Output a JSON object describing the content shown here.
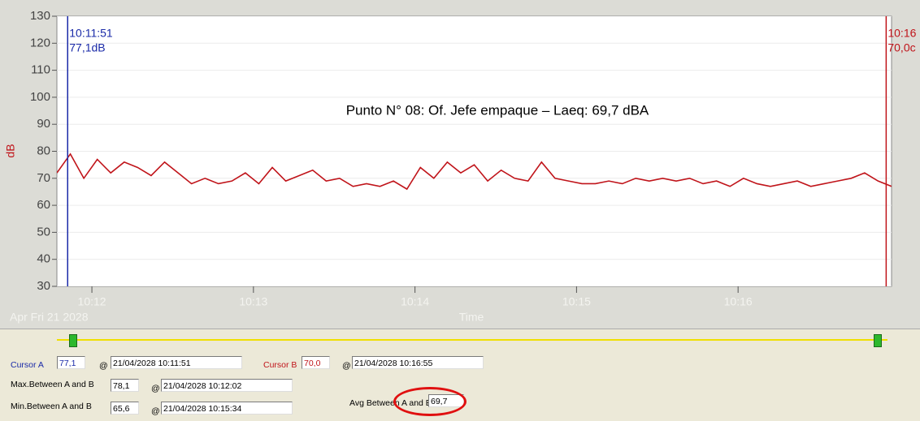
{
  "chart_data": {
    "type": "line",
    "annotation": "Punto N° 08: Of. Jefe empaque – Laeq: 69,7 dBA",
    "ylabel": "dB",
    "xlabel": "Time",
    "date_label": "Apr Fri 21 2028",
    "x": [
      "10:11:47",
      "10:11:52",
      "10:11:57",
      "10:12:02",
      "10:12:07",
      "10:12:12",
      "10:12:17",
      "10:12:22",
      "10:12:27",
      "10:12:32",
      "10:12:37",
      "10:12:42",
      "10:12:47",
      "10:12:52",
      "10:12:57",
      "10:13:02",
      "10:13:07",
      "10:13:12",
      "10:13:17",
      "10:13:22",
      "10:13:27",
      "10:13:32",
      "10:13:37",
      "10:13:42",
      "10:13:47",
      "10:13:52",
      "10:13:57",
      "10:14:02",
      "10:14:07",
      "10:14:12",
      "10:14:17",
      "10:14:22",
      "10:14:27",
      "10:14:32",
      "10:14:37",
      "10:14:42",
      "10:14:47",
      "10:14:52",
      "10:14:57",
      "10:15:02",
      "10:15:07",
      "10:15:12",
      "10:15:17",
      "10:15:22",
      "10:15:27",
      "10:15:32",
      "10:15:37",
      "10:15:42",
      "10:15:47",
      "10:15:52",
      "10:15:57",
      "10:16:02",
      "10:16:07",
      "10:16:12",
      "10:16:17",
      "10:16:22",
      "10:16:27",
      "10:16:32",
      "10:16:37",
      "10:16:42",
      "10:16:47",
      "10:16:52",
      "10:16:57"
    ],
    "series": [
      {
        "name": "dB",
        "color": "#c0141a",
        "values": [
          72,
          79,
          70,
          77,
          72,
          76,
          74,
          71,
          76,
          72,
          68,
          70,
          68,
          69,
          72,
          68,
          74,
          69,
          71,
          73,
          69,
          70,
          67,
          68,
          67,
          69,
          66,
          74,
          70,
          76,
          72,
          75,
          69,
          73,
          70,
          69,
          76,
          70,
          69,
          68,
          68,
          69,
          68,
          70,
          69,
          70,
          69,
          70,
          68,
          69,
          67,
          70,
          68,
          67,
          68,
          69,
          67,
          68,
          69,
          70,
          72,
          69,
          67
        ]
      }
    ],
    "xlim": [
      "10:11:47",
      "10:16:57"
    ],
    "xticks": [
      "10:12",
      "10:13",
      "10:14",
      "10:15",
      "10:16"
    ],
    "ylim": [
      30,
      130
    ],
    "yticks": [
      30,
      40,
      50,
      60,
      70,
      80,
      90,
      100,
      110,
      120,
      130
    ],
    "grid": true,
    "cursors": [
      {
        "x": "10:11:51",
        "color": "#1a2aa8",
        "time_label": "10:11:51",
        "value_label": "77,1dB"
      },
      {
        "x": "10:16:55",
        "color": "#c0141a",
        "time_label": "10:16",
        "value_label": "70,0c"
      }
    ]
  },
  "panel": {
    "cursor_a": {
      "label": "Cursor A",
      "value": "77,1",
      "at": "@",
      "time": "21/04/2028 10:11:51"
    },
    "cursor_b": {
      "label": "Cursor B",
      "value": "70,0",
      "at": "@",
      "time": "21/04/2028 10:16:55"
    },
    "max": {
      "label": "Max.Between A and B",
      "value": "78,1",
      "at": "@",
      "time": "21/04/2028 10:12:02"
    },
    "min": {
      "label": "Min.Between A and B",
      "value": "65,6",
      "at": "@",
      "time": "21/04/2028 10:15:34"
    },
    "avg": {
      "label": "Avg Between A and B",
      "value": "69,7"
    }
  }
}
